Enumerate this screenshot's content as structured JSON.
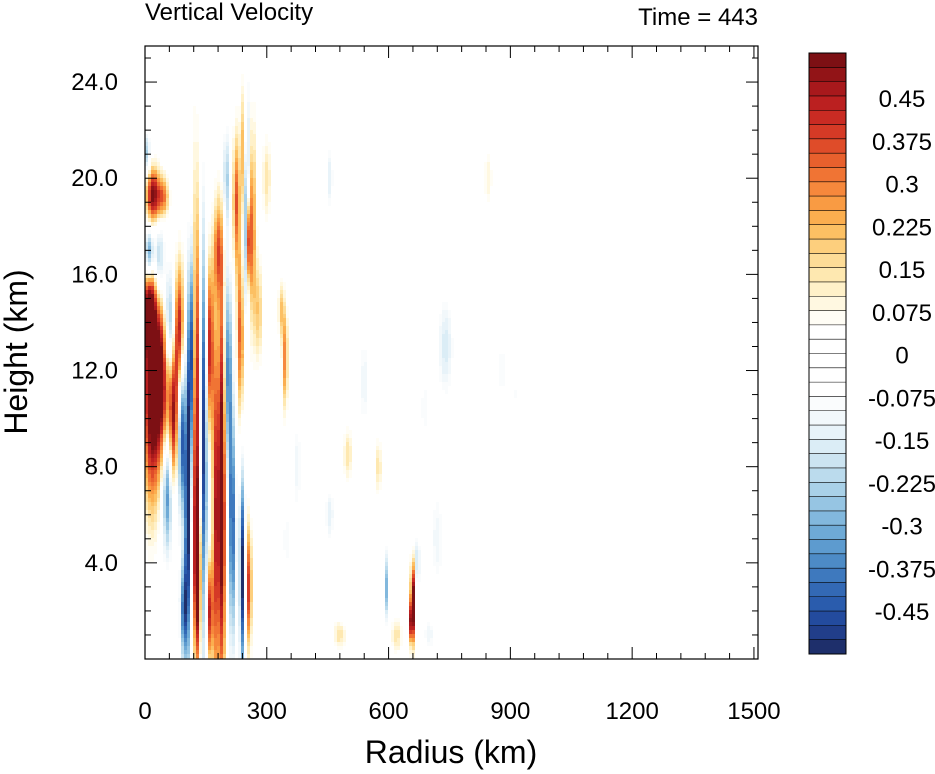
{
  "chart_data": {
    "type": "heatmap",
    "title": "Vertical Velocity",
    "time_label": "Time = 443",
    "xlabel": "Radius (km)",
    "ylabel": "Height (km)",
    "xlim": [
      0,
      1510
    ],
    "ylim": [
      0,
      25.5
    ],
    "x_ticks": [
      {
        "value": 0,
        "label": "0"
      },
      {
        "value": 300,
        "label": "300"
      },
      {
        "value": 600,
        "label": "600"
      },
      {
        "value": 900,
        "label": "900"
      },
      {
        "value": 1200,
        "label": "1200"
      },
      {
        "value": 1500,
        "label": "1500"
      }
    ],
    "y_ticks": [
      {
        "value": 4,
        "label": "4.0"
      },
      {
        "value": 8,
        "label": "8.0"
      },
      {
        "value": 12,
        "label": "12.0"
      },
      {
        "value": 16,
        "label": "16.0"
      },
      {
        "value": 20,
        "label": "20.0"
      },
      {
        "value": 24,
        "label": "24.0"
      }
    ],
    "colorbar": {
      "levels": [
        -0.525,
        -0.5,
        -0.475,
        -0.45,
        -0.425,
        -0.4,
        -0.375,
        -0.35,
        -0.325,
        -0.3,
        -0.275,
        -0.25,
        -0.225,
        -0.2,
        -0.175,
        -0.15,
        -0.125,
        -0.1,
        -0.075,
        -0.05,
        -0.025,
        0,
        0.025,
        0.05,
        0.075,
        0.1,
        0.125,
        0.15,
        0.175,
        0.2,
        0.225,
        0.25,
        0.275,
        0.3,
        0.325,
        0.35,
        0.375,
        0.4,
        0.425,
        0.45,
        0.475,
        0.5,
        0.525
      ],
      "labels": [
        "0.45",
        "0.375",
        "0.3",
        "0.225",
        "0.15",
        "0.075",
        "0",
        "-0.075",
        "-0.15",
        "-0.225",
        "-0.3",
        "-0.375",
        "-0.45"
      ],
      "colors": [
        "#1e2f6b",
        "#213e8a",
        "#234b9e",
        "#2a5cad",
        "#3369b5",
        "#3e79be",
        "#4d8bc6",
        "#5d9bcf",
        "#6eaad6",
        "#82b8dd",
        "#96c5e3",
        "#a9d1e8",
        "#bbdbed",
        "#cce4f1",
        "#dbedf6",
        "#e8f3f9",
        "#f2f8fb",
        "#fafcfd",
        "#ffffff",
        "#ffffff",
        "#ffffff",
        "#ffffff",
        "#ffffff",
        "#fffdf5",
        "#fff8e1",
        "#fff1c9",
        "#fee8b0",
        "#fddc97",
        "#fdcf7d",
        "#fcc063",
        "#fbae4f",
        "#f99b43",
        "#f6883c",
        "#f07434",
        "#e8602d",
        "#df4c29",
        "#d53a26",
        "#c92b23",
        "#bb2020",
        "#a8191c",
        "#921417",
        "#7d1014"
      ]
    },
    "features": [
      {
        "r": 15,
        "z": 11.0,
        "dr": 14,
        "dz": 3.2,
        "w": 0.55
      },
      {
        "r": 40,
        "z": 11.5,
        "dr": 14,
        "dz": 2.5,
        "w": 0.5
      },
      {
        "r": 10,
        "z": 14.5,
        "dr": 12,
        "dz": 1.3,
        "w": 0.4
      },
      {
        "r": 20,
        "z": 19.3,
        "dr": 12,
        "dz": 0.8,
        "w": 0.5
      },
      {
        "r": 45,
        "z": 19.2,
        "dr": 10,
        "dz": 0.6,
        "w": 0.3
      },
      {
        "r": 10,
        "z": 16.8,
        "dr": 8,
        "dz": 0.8,
        "w": -0.45
      },
      {
        "r": 5,
        "z": 21.0,
        "dr": 6,
        "dz": 0.6,
        "w": -0.25
      },
      {
        "r": 35,
        "z": 16.5,
        "dr": 10,
        "dz": 1.2,
        "w": -0.3
      },
      {
        "r": 60,
        "z": 14.0,
        "dr": 8,
        "dz": 1.5,
        "w": -0.35
      },
      {
        "r": 55,
        "z": 7.0,
        "dr": 9,
        "dz": 1.8,
        "w": -0.4
      },
      {
        "r": 70,
        "z": 10.0,
        "dr": 8,
        "dz": 2.0,
        "w": 0.45
      },
      {
        "r": 85,
        "z": 13.5,
        "dr": 8,
        "dz": 2.0,
        "w": 0.5
      },
      {
        "r": 90,
        "z": 9.5,
        "dr": 6,
        "dz": 2.5,
        "w": -0.5
      },
      {
        "r": 105,
        "z": 6.0,
        "dr": 5,
        "dz": 4.5,
        "w": -0.55
      },
      {
        "r": 115,
        "z": 12.5,
        "dr": 6,
        "dz": 3.5,
        "w": -0.55
      },
      {
        "r": 125,
        "z": 11.0,
        "dr": 6,
        "dz": 5.5,
        "w": 0.6
      },
      {
        "r": 130,
        "z": 3.5,
        "dr": 6,
        "dz": 2.5,
        "w": 0.55
      },
      {
        "r": 145,
        "z": 9.0,
        "dr": 6,
        "dz": 6.0,
        "w": -0.5
      },
      {
        "r": 160,
        "z": 13.0,
        "dr": 6,
        "dz": 2.5,
        "w": 0.45
      },
      {
        "r": 175,
        "z": 6.0,
        "dr": 6,
        "dz": 5.5,
        "w": 0.45
      },
      {
        "r": 190,
        "z": 7.0,
        "dr": 6,
        "dz": 6.0,
        "w": 0.6
      },
      {
        "r": 205,
        "z": 12.0,
        "dr": 6,
        "dz": 3.0,
        "w": -0.4
      },
      {
        "r": 215,
        "z": 5.5,
        "dr": 6,
        "dz": 3.5,
        "w": -0.45
      },
      {
        "r": 95,
        "z": 2.0,
        "dr": 6,
        "dz": 1.5,
        "w": -0.4
      },
      {
        "r": 160,
        "z": 2.0,
        "dr": 5,
        "dz": 1.5,
        "w": 0.45
      },
      {
        "r": 235,
        "z": 13.5,
        "dr": 6,
        "dz": 2.5,
        "w": 0.35
      },
      {
        "r": 240,
        "z": 3.5,
        "dr": 5,
        "dz": 3.0,
        "w": -0.55
      },
      {
        "r": 255,
        "z": 3.0,
        "dr": 6,
        "dz": 1.8,
        "w": 0.4
      },
      {
        "r": 250,
        "z": 19.5,
        "dr": 5,
        "dz": 3.0,
        "w": -0.6
      },
      {
        "r": 245,
        "z": 21.0,
        "dr": 6,
        "dz": 2.0,
        "w": 0.4
      },
      {
        "r": 255,
        "z": 17.5,
        "dr": 4,
        "dz": 1.5,
        "w": 0.55
      },
      {
        "r": 225,
        "z": 19.0,
        "dr": 6,
        "dz": 2.0,
        "w": 0.35
      },
      {
        "r": 265,
        "z": 18.0,
        "dr": 6,
        "dz": 3.0,
        "w": 0.3
      },
      {
        "r": 200,
        "z": 20.0,
        "dr": 6,
        "dz": 1.5,
        "w": -0.25
      },
      {
        "r": 180,
        "z": 17.0,
        "dr": 8,
        "dz": 1.5,
        "w": 0.3
      },
      {
        "r": 280,
        "z": 14.5,
        "dr": 7,
        "dz": 1.5,
        "w": 0.2
      },
      {
        "r": 345,
        "z": 12.5,
        "dr": 5,
        "dz": 1.5,
        "w": 0.3
      },
      {
        "r": 335,
        "z": 14.5,
        "dr": 5,
        "dz": 0.8,
        "w": 0.2
      },
      {
        "r": 300,
        "z": 20.0,
        "dr": 8,
        "dz": 1.2,
        "w": 0.15
      },
      {
        "r": 375,
        "z": 8.0,
        "dr": 8,
        "dz": 1.5,
        "w": -0.12
      },
      {
        "r": 350,
        "z": 5.0,
        "dr": 10,
        "dz": 1.0,
        "w": -0.1
      },
      {
        "r": 455,
        "z": 6.0,
        "dr": 8,
        "dz": 0.8,
        "w": -0.15
      },
      {
        "r": 500,
        "z": 8.5,
        "dr": 8,
        "dz": 0.8,
        "w": 0.15
      },
      {
        "r": 540,
        "z": 11.5,
        "dr": 10,
        "dz": 1.5,
        "w": -0.12
      },
      {
        "r": 595,
        "z": 3.0,
        "dr": 4,
        "dz": 1.0,
        "w": -0.3
      },
      {
        "r": 660,
        "z": 2.5,
        "dr": 4,
        "dz": 1.2,
        "w": 0.6
      },
      {
        "r": 655,
        "z": 1.5,
        "dr": 4,
        "dz": 0.6,
        "w": 0.35
      },
      {
        "r": 670,
        "z": 4.0,
        "dr": 6,
        "dz": 0.8,
        "w": -0.2
      },
      {
        "r": 740,
        "z": 13.0,
        "dr": 14,
        "dz": 1.5,
        "w": -0.17
      },
      {
        "r": 690,
        "z": 10.5,
        "dr": 10,
        "dz": 1.0,
        "w": -0.1
      },
      {
        "r": 720,
        "z": 5.0,
        "dr": 12,
        "dz": 1.5,
        "w": -0.12
      },
      {
        "r": 575,
        "z": 8.0,
        "dr": 6,
        "dz": 0.8,
        "w": 0.15
      },
      {
        "r": 455,
        "z": 20.0,
        "dr": 6,
        "dz": 1.0,
        "w": -0.15
      },
      {
        "r": 845,
        "z": 20.0,
        "dr": 8,
        "dz": 0.8,
        "w": 0.1
      },
      {
        "r": 880,
        "z": 12.0,
        "dr": 10,
        "dz": 1.0,
        "w": -0.1
      },
      {
        "r": 910,
        "z": 11.0,
        "dr": 8,
        "dz": 1.5,
        "w": -0.08
      },
      {
        "r": 480,
        "z": 1.0,
        "dr": 12,
        "dz": 0.4,
        "w": 0.15
      },
      {
        "r": 620,
        "z": 1.0,
        "dr": 10,
        "dz": 0.5,
        "w": 0.15
      },
      {
        "r": 700,
        "z": 1.0,
        "dr": 10,
        "dz": 0.5,
        "w": -0.12
      }
    ]
  }
}
